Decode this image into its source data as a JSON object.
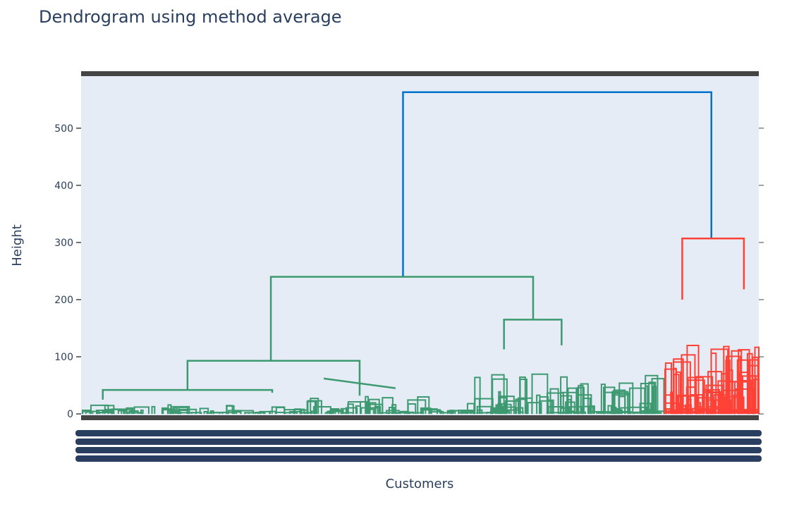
{
  "chart_data": {
    "type": "dendrogram",
    "title": "Dendrogram using method average",
    "xlabel": "Customers",
    "ylabel": "Height",
    "ylim": [
      -6,
      596
    ],
    "yticks": [
      0,
      100,
      200,
      300,
      400,
      500
    ],
    "grid": false,
    "legend": "none",
    "colors": {
      "root": "#0072cd",
      "cluster_a": "#3d9970",
      "cluster_b": "#ff4136",
      "frame": "#444444",
      "plot_bg": "#e5ecf6",
      "text": "#2a3f5f"
    },
    "clusters": [
      {
        "color": "cluster_a",
        "leaf_range": [
          0,
          0.86
        ]
      },
      {
        "color": "cluster_b",
        "leaf_range": [
          0.86,
          1
        ]
      }
    ],
    "links": [
      {
        "x": [
          0.475,
          0.475,
          0.93,
          0.93
        ],
        "y": [
          240,
          563,
          563,
          307
        ],
        "c": "root"
      },
      {
        "x": [
          0.28,
          0.28,
          0.667,
          0.667
        ],
        "y": [
          93,
          240,
          240,
          165
        ],
        "c": "cluster_a"
      },
      {
        "x": [
          0.157,
          0.157,
          0.411,
          0.411
        ],
        "y": [
          42,
          93,
          93,
          32
        ],
        "c": "cluster_a"
      },
      {
        "x": [
          0.032,
          0.032,
          0.282,
          0.282
        ],
        "y": [
          25,
          42,
          42,
          37
        ],
        "c": "cluster_a"
      },
      {
        "x": [
          0.358,
          0.358,
          0.464,
          0.464
        ],
        "y": [
          62,
          62,
          45,
          45
        ],
        "c": "cluster_a"
      },
      {
        "x": [
          0.624,
          0.624,
          0.709,
          0.709
        ],
        "y": [
          113,
          165,
          165,
          120
        ],
        "c": "cluster_a"
      },
      {
        "x": [
          0.887,
          0.887,
          0.978,
          0.978
        ],
        "y": [
          200,
          307,
          307,
          218
        ],
        "c": "cluster_b"
      }
    ]
  }
}
